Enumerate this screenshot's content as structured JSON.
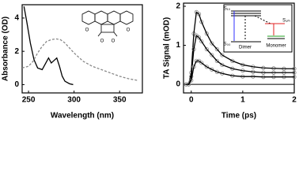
{
  "chart_data": [
    {
      "type": "line",
      "xlabel": "Wavelength (nm)",
      "ylabel": "Absorbance (OD)",
      "xlim": [
        243,
        375
      ],
      "ylim": [
        -0.5,
        4.8
      ],
      "xticks": [
        250,
        300,
        350
      ],
      "yticks": [
        0,
        2,
        4
      ],
      "series": [
        {
          "color": "#000000",
          "dash": false,
          "x": [
            245,
            248,
            252,
            256,
            260,
            265,
            268,
            272,
            275,
            278,
            281,
            284,
            287,
            290,
            295,
            299
          ],
          "values": [
            4.7,
            3.8,
            2.5,
            1.5,
            1.0,
            0.9,
            1.2,
            1.6,
            1.3,
            1.45,
            1.6,
            1.1,
            0.5,
            0.2,
            0.05,
            0
          ]
        },
        {
          "color": "#888888",
          "dash": true,
          "x": [
            243,
            250,
            255,
            260,
            265,
            270,
            275,
            280,
            285,
            290,
            295,
            300,
            310,
            320,
            330,
            340,
            350,
            360,
            370
          ],
          "values": [
            1.0,
            1.1,
            1.4,
            1.9,
            2.3,
            2.6,
            2.7,
            2.75,
            2.7,
            2.5,
            2.2,
            1.9,
            1.4,
            1.1,
            0.9,
            0.7,
            0.5,
            0.35,
            0.25
          ]
        }
      ],
      "inset_labels": [
        "O",
        "O",
        "O",
        "O"
      ]
    },
    {
      "type": "line",
      "xlabel": "Time (ps)",
      "ylabel": "TA Signal (mOD)",
      "xlim": [
        -0.15,
        2
      ],
      "ylim": [
        -0.22,
        2.08
      ],
      "xticks": [
        0,
        1,
        2
      ],
      "yticks": [
        0,
        1,
        2
      ],
      "hline": 0,
      "series": [
        {
          "color": "#000000",
          "dash": false,
          "marker_color": "#888888",
          "x": [
            -0.1,
            -0.05,
            0,
            0.05,
            0.1,
            0.15,
            0.2,
            0.3,
            0.4,
            0.5,
            0.6,
            0.8,
            1.0,
            1.2,
            1.4,
            1.6,
            1.8,
            2.0
          ],
          "values": [
            0,
            0,
            0.3,
            1.3,
            1.85,
            1.8,
            1.6,
            1.3,
            1.05,
            0.9,
            0.75,
            0.6,
            0.5,
            0.45,
            0.42,
            0.41,
            0.4,
            0.4
          ]
        },
        {
          "color": "#000000",
          "dash": false,
          "marker_color": "#888888",
          "x": [
            -0.1,
            -0.05,
            0,
            0.05,
            0.1,
            0.15,
            0.2,
            0.3,
            0.4,
            0.5,
            0.6,
            0.8,
            1.0,
            1.2,
            1.4,
            1.6,
            1.8,
            2.0
          ],
          "values": [
            0,
            0,
            0.2,
            0.9,
            1.25,
            1.2,
            1.1,
            0.9,
            0.75,
            0.6,
            0.5,
            0.4,
            0.35,
            0.32,
            0.3,
            0.3,
            0.3,
            0.3
          ]
        },
        {
          "color": "#000000",
          "dash": false,
          "marker_color": "#888888",
          "x": [
            -0.1,
            -0.05,
            0,
            0.05,
            0.1,
            0.15,
            0.2,
            0.3,
            0.4,
            0.5,
            0.6,
            0.8,
            1.0,
            1.2,
            1.4,
            1.6,
            1.8,
            2.0
          ],
          "values": [
            0,
            0,
            0.1,
            0.45,
            0.6,
            0.6,
            0.55,
            0.45,
            0.38,
            0.32,
            0.28,
            0.22,
            0.2,
            0.2,
            0.19,
            0.19,
            0.19,
            0.19
          ]
        }
      ],
      "inset_labels": [
        "S₁₀",
        "S₁ₘ",
        "S₀₀",
        "Dimer",
        "Monomer"
      ]
    }
  ]
}
